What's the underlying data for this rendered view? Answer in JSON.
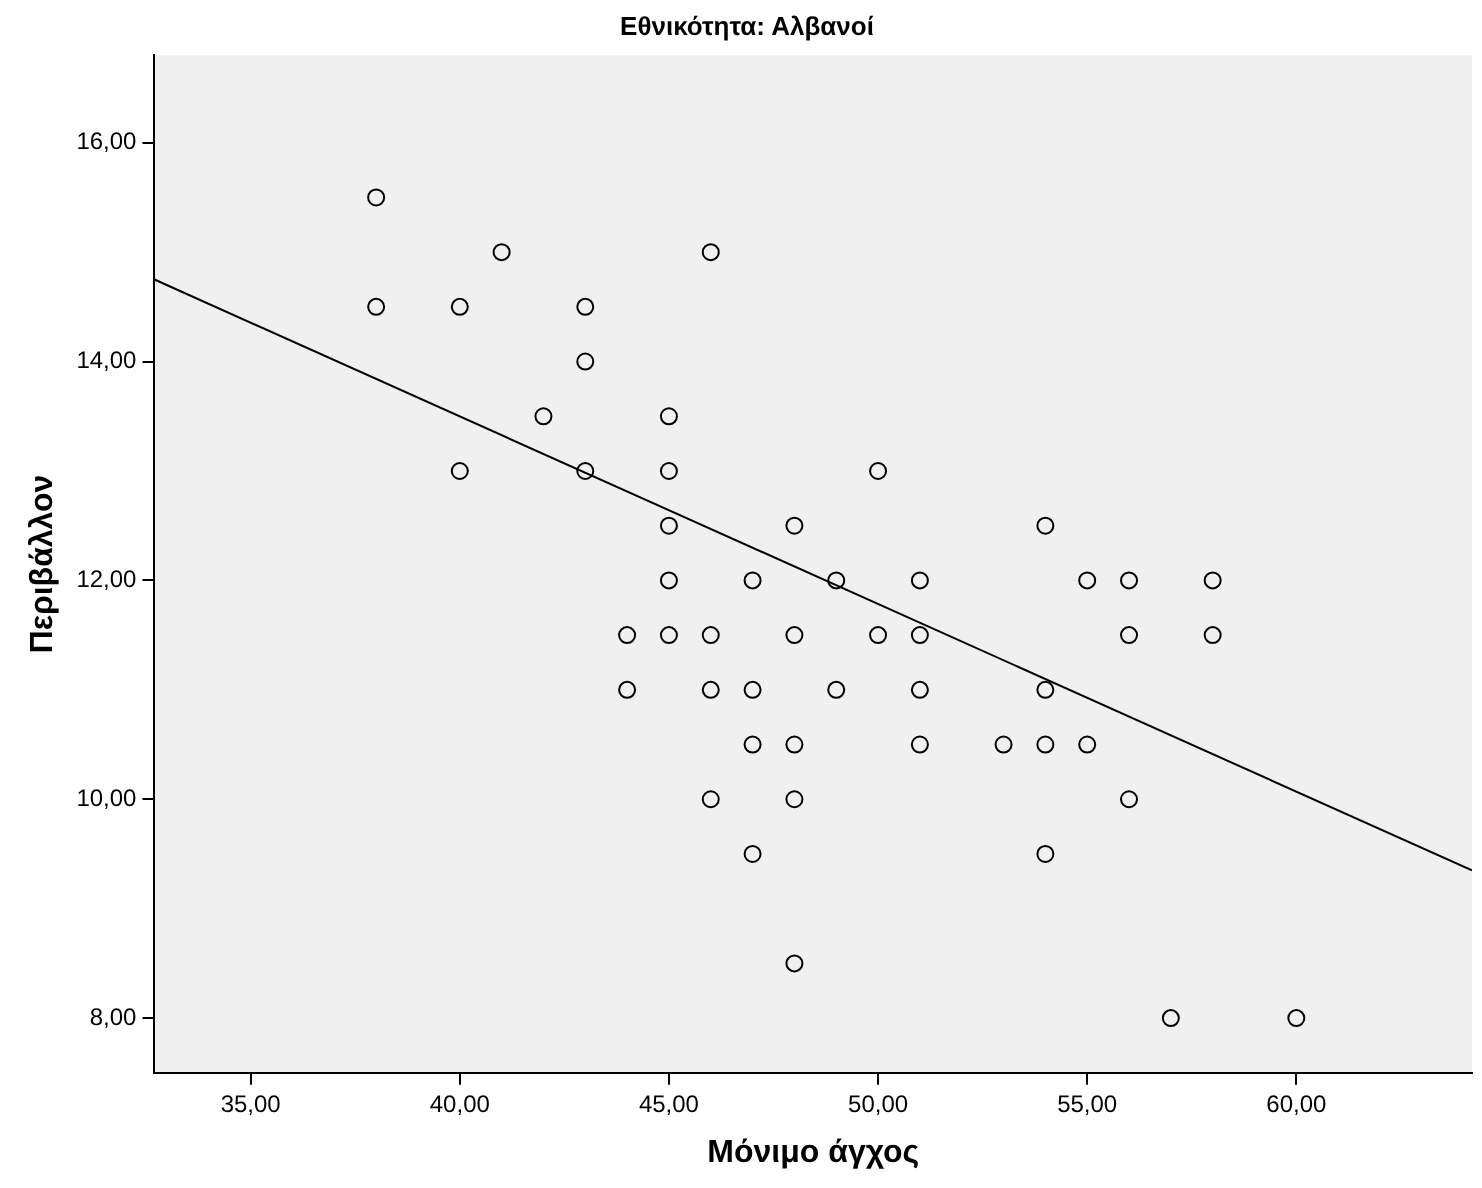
{
  "chart_data": {
    "type": "scatter",
    "title": "Εθνικότητα: Αλβανοί",
    "xlabel": "Μόνιμο άγχος",
    "ylabel": "Περιβάλλον",
    "xlim": [
      32.7,
      64.2
    ],
    "ylim": [
      7.5,
      16.8
    ],
    "xticks": [
      {
        "value": 35,
        "label": "35,00"
      },
      {
        "value": 40,
        "label": "40,00"
      },
      {
        "value": 45,
        "label": "45,00"
      },
      {
        "value": 50,
        "label": "50,00"
      },
      {
        "value": 55,
        "label": "55,00"
      },
      {
        "value": 60,
        "label": "60,00"
      }
    ],
    "yticks": [
      {
        "value": 8,
        "label": "8,00"
      },
      {
        "value": 10,
        "label": "10,00"
      },
      {
        "value": 12,
        "label": "12,00"
      },
      {
        "value": 14,
        "label": "14,00"
      },
      {
        "value": 16,
        "label": "16,00"
      }
    ],
    "grid": false,
    "legend": false,
    "marker": "circle",
    "series": [
      {
        "type": "scatter",
        "color": "#000000",
        "x": [
          38,
          38,
          40,
          40,
          41,
          42,
          43,
          43,
          43,
          45,
          45,
          45,
          45,
          45,
          44,
          44,
          46,
          46,
          46,
          46,
          47,
          47,
          47,
          47,
          48,
          48,
          48,
          48,
          48,
          49,
          49,
          50,
          50,
          51,
          51,
          51,
          51,
          53,
          54,
          54,
          54,
          54,
          55,
          55,
          56,
          56,
          56,
          57,
          58,
          58,
          60
        ],
        "values": [
          15.5,
          14.5,
          14.5,
          13,
          15,
          13.5,
          14.5,
          14,
          13,
          13.5,
          13,
          12.5,
          12,
          11.5,
          11.5,
          11,
          15,
          11.5,
          11,
          10,
          12,
          11,
          10.5,
          9.5,
          12.5,
          11.5,
          10.5,
          10,
          8.5,
          12,
          11,
          13,
          11.5,
          12,
          11.5,
          11,
          10.5,
          10.5,
          12.5,
          11,
          10.5,
          9.5,
          12,
          10.5,
          12,
          11.5,
          10,
          8,
          12,
          11.5,
          8
        ]
      },
      {
        "type": "line",
        "color": "#000000",
        "marker": "none",
        "x": [
          32.7,
          64.2
        ],
        "values": [
          14.75,
          9.35
        ]
      }
    ]
  }
}
